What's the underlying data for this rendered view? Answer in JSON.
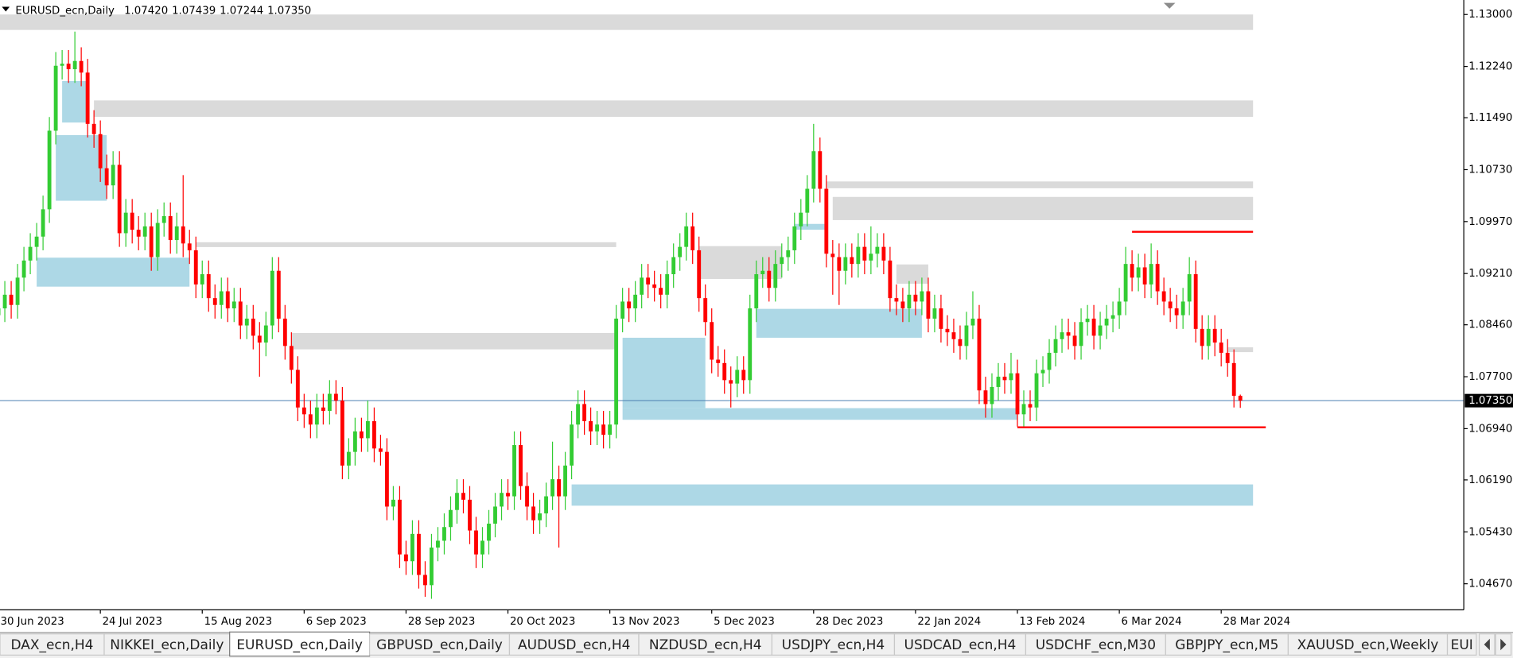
{
  "chart_data": {
    "type": "candlestick",
    "symbol": "EURUSD_ecn,Daily",
    "header_values": [
      "1.07420",
      "1.07439",
      "1.07244",
      "1.07350"
    ],
    "up_color": "#33cc33",
    "down_color": "#ff0000",
    "ylim": [
      1.04289,
      1.13184
    ],
    "yticks": [
      {
        "value": 1.13,
        "label": "1.13000"
      },
      {
        "value": 1.1224,
        "label": "1.12240"
      },
      {
        "value": 1.1149,
        "label": "1.11490"
      },
      {
        "value": 1.1073,
        "label": "1.10730"
      },
      {
        "value": 1.0997,
        "label": "1.09970"
      },
      {
        "value": 1.0921,
        "label": "1.09210"
      },
      {
        "value": 1.0846,
        "label": "1.08460"
      },
      {
        "value": 1.077,
        "label": "1.07700"
      },
      {
        "value": 1.0694,
        "label": "1.06940"
      },
      {
        "value": 1.0619,
        "label": "1.06190"
      },
      {
        "value": 1.0543,
        "label": "1.05430"
      },
      {
        "value": 1.0467,
        "label": "1.04670"
      }
    ],
    "last_price": {
      "value": 1.0735,
      "label": "1.07350"
    },
    "last_price_color": "#4a7fb0",
    "categories": [
      "30 Jun 2023",
      null,
      null,
      null,
      null,
      null,
      null,
      null,
      null,
      null,
      null,
      null,
      null,
      null,
      null,
      null,
      "24 Jul 2023",
      null,
      null,
      null,
      null,
      null,
      null,
      null,
      null,
      null,
      null,
      null,
      null,
      null,
      null,
      null,
      "15 Aug 2023",
      null,
      null,
      null,
      null,
      null,
      null,
      null,
      null,
      null,
      null,
      null,
      null,
      null,
      null,
      null,
      "6 Sep 2023",
      null,
      null,
      null,
      null,
      null,
      null,
      null,
      null,
      null,
      null,
      null,
      null,
      null,
      null,
      null,
      "28 Sep 2023",
      null,
      null,
      null,
      null,
      null,
      null,
      null,
      null,
      null,
      null,
      null,
      null,
      null,
      null,
      null,
      "20 Oct 2023",
      null,
      null,
      null,
      null,
      null,
      null,
      null,
      null,
      null,
      null,
      null,
      null,
      null,
      null,
      null,
      "13 Nov 2023",
      null,
      null,
      null,
      null,
      null,
      null,
      null,
      null,
      null,
      null,
      null,
      null,
      null,
      null,
      null,
      "5 Dec 2023",
      null,
      null,
      null,
      null,
      null,
      null,
      null,
      null,
      null,
      null,
      null,
      null,
      null,
      null,
      null,
      "28 Dec 2023",
      null,
      null,
      null,
      null,
      null,
      null,
      null,
      null,
      null,
      null,
      null,
      null,
      null,
      null,
      null,
      "22 Jan 2024",
      null,
      null,
      null,
      null,
      null,
      null,
      null,
      null,
      null,
      null,
      null,
      null,
      null,
      null,
      null,
      "13 Feb 2024",
      null,
      null,
      null,
      null,
      null,
      null,
      null,
      null,
      null,
      null,
      null,
      null,
      null,
      null,
      null,
      "6 Mar 2024",
      null,
      null,
      null,
      null,
      null,
      null,
      null,
      null,
      null,
      null,
      null,
      null,
      null,
      null,
      null,
      "28 Mar 2024",
      null,
      null,
      null
    ],
    "open": [
      1.086,
      1.087,
      1.089,
      1.0875,
      1.0915,
      1.094,
      1.096,
      1.0975,
      1.1015,
      1.113,
      1.1225,
      1.1228,
      1.122,
      1.1232,
      1.1215,
      1.114,
      1.1125,
      1.1075,
      1.105,
      1.108,
      1.098,
      1.101,
      1.0985,
      1.0975,
      1.099,
      1.0945,
      1.0995,
      1.1005,
      1.097,
      1.099,
      1.0965,
      1.0955,
      1.0905,
      1.092,
      1.0885,
      1.0875,
      1.0895,
      1.087,
      1.088,
      1.0845,
      1.0855,
      1.083,
      1.082,
      1.0845,
      1.0925,
      1.0855,
      1.0815,
      1.078,
      1.0725,
      1.0715,
      1.07,
      1.0725,
      1.072,
      1.0745,
      1.0735,
      1.064,
      1.066,
      1.069,
      1.068,
      1.0705,
      1.0665,
      1.066,
      1.058,
      1.059,
      1.051,
      1.05,
      1.054,
      1.048,
      1.0465,
      1.052,
      1.053,
      1.055,
      1.0575,
      1.06,
      1.059,
      1.0545,
      1.051,
      1.053,
      1.0555,
      1.058,
      1.06,
      1.0595,
      1.067,
      1.061,
      1.058,
      1.056,
      1.057,
      1.0595,
      1.062,
      1.0595,
      1.064,
      1.07,
      1.073,
      1.0705,
      1.069,
      1.07,
      1.0685,
      1.07,
      1.0855,
      1.088,
      1.087,
      1.089,
      1.0915,
      1.0905,
      1.09,
      1.089,
      1.092,
      1.0945,
      1.096,
      1.099,
      1.0955,
      1.0885,
      1.085,
      1.0795,
      1.079,
      1.0765,
      1.076,
      1.078,
      1.0765,
      1.087,
      1.092,
      1.0925,
      1.09,
      1.0935,
      1.0945,
      1.0955,
      1.099,
      1.101,
      1.1045,
      1.11,
      1.1045,
      1.095,
      1.0945,
      1.0925,
      1.0945,
      1.0935,
      1.096,
      1.094,
      1.095,
      1.096,
      1.094,
      1.0885,
      1.088,
      1.087,
      1.089,
      1.088,
      1.0895,
      1.0855,
      1.087,
      1.084,
      1.0835,
      1.0825,
      1.0815,
      1.0845,
      1.0855,
      1.075,
      1.073,
      1.0755,
      1.077,
      1.0765,
      1.0775,
      1.0715,
      1.073,
      1.0725,
      1.0775,
      1.078,
      1.0805,
      1.0825,
      1.0835,
      1.083,
      1.0815,
      1.085,
      1.0855,
      1.083,
      1.0845,
      1.0855,
      1.086,
      1.088,
      1.0935,
      1.0915,
      1.093,
      1.0905,
      1.0935,
      1.0895,
      1.088,
      1.087,
      1.086,
      1.088,
      1.092,
      1.084,
      1.0815,
      1.084,
      1.082,
      1.0805,
      1.079,
      1.0742
    ],
    "high": [
      1.089,
      1.091,
      1.091,
      1.0935,
      1.096,
      1.098,
      1.0995,
      1.1035,
      1.115,
      1.1245,
      1.1248,
      1.1248,
      1.1275,
      1.1252,
      1.1235,
      1.116,
      1.1145,
      1.1095,
      1.11,
      1.11,
      1.103,
      1.103,
      1.1005,
      1.101,
      1.101,
      1.1015,
      1.1025,
      1.1025,
      1.101,
      1.1065,
      1.0985,
      1.0975,
      1.094,
      1.094,
      1.0905,
      1.0915,
      1.0915,
      1.09,
      1.09,
      1.0875,
      1.0875,
      1.085,
      1.0865,
      1.0945,
      1.0945,
      1.0875,
      1.0835,
      1.08,
      1.0745,
      1.0735,
      1.0745,
      1.0745,
      1.0765,
      1.0765,
      1.0755,
      1.068,
      1.071,
      1.071,
      1.0735,
      1.0725,
      1.0685,
      1.068,
      1.061,
      1.061,
      1.053,
      1.056,
      1.056,
      1.05,
      1.054,
      1.055,
      1.057,
      1.0595,
      1.062,
      1.062,
      1.061,
      1.0565,
      1.055,
      1.0575,
      1.06,
      1.062,
      1.062,
      1.069,
      1.069,
      1.063,
      1.06,
      1.059,
      1.0615,
      1.0675,
      1.064,
      1.066,
      1.072,
      1.075,
      1.075,
      1.0725,
      1.072,
      1.072,
      1.072,
      1.0875,
      1.09,
      1.09,
      1.091,
      1.0935,
      1.0935,
      1.0925,
      1.092,
      1.094,
      1.0965,
      1.098,
      1.101,
      1.101,
      1.0975,
      1.0905,
      1.087,
      1.0815,
      1.081,
      1.0785,
      1.08,
      1.08,
      1.089,
      1.094,
      1.0945,
      1.0945,
      1.0955,
      1.0965,
      1.0975,
      1.101,
      1.103,
      1.1065,
      1.114,
      1.112,
      1.1065,
      1.097,
      1.0965,
      1.0965,
      1.0965,
      1.098,
      1.098,
      1.099,
      1.098,
      1.098,
      1.096,
      1.0905,
      1.09,
      1.091,
      1.091,
      1.0915,
      1.0915,
      1.089,
      1.089,
      1.086,
      1.0855,
      1.0845,
      1.0865,
      1.0895,
      1.0875,
      1.077,
      1.0775,
      1.079,
      1.079,
      1.0805,
      1.0795,
      1.075,
      1.075,
      1.0795,
      1.08,
      1.0825,
      1.0845,
      1.0855,
      1.0855,
      1.085,
      1.087,
      1.0875,
      1.0875,
      1.0865,
      1.0875,
      1.088,
      1.09,
      1.096,
      1.0955,
      1.095,
      1.095,
      1.0965,
      1.0955,
      1.0915,
      1.09,
      1.089,
      1.09,
      1.0945,
      1.094,
      1.086,
      1.086,
      1.086,
      1.084,
      1.0825,
      1.081,
      1.07439
    ],
    "low": [
      1.084,
      1.085,
      1.0855,
      1.0855,
      1.0895,
      1.092,
      1.094,
      1.0955,
      1.0995,
      1.111,
      1.1205,
      1.12,
      1.12,
      1.1195,
      1.112,
      1.1105,
      1.1055,
      1.103,
      1.103,
      1.096,
      1.096,
      1.0965,
      1.0955,
      1.0955,
      1.0925,
      1.0925,
      1.0975,
      1.095,
      1.095,
      1.0945,
      1.0935,
      1.0885,
      1.0885,
      1.0865,
      1.0855,
      1.0855,
      1.085,
      1.085,
      1.0825,
      1.0825,
      1.081,
      1.077,
      1.08,
      1.0825,
      1.0835,
      1.0795,
      1.076,
      1.0705,
      1.0695,
      1.068,
      1.068,
      1.07,
      1.07,
      1.0715,
      1.062,
      1.062,
      1.064,
      1.066,
      1.066,
      1.0645,
      1.064,
      1.056,
      1.056,
      1.049,
      1.048,
      1.048,
      1.046,
      1.0448,
      1.0445,
      1.05,
      1.051,
      1.053,
      1.0555,
      1.057,
      1.0525,
      1.049,
      1.049,
      1.051,
      1.0535,
      1.056,
      1.0575,
      1.0575,
      1.059,
      1.056,
      1.054,
      1.054,
      1.055,
      1.0575,
      1.052,
      1.0575,
      1.062,
      1.068,
      1.0685,
      1.067,
      1.067,
      1.0665,
      1.0665,
      1.068,
      1.0835,
      1.085,
      1.085,
      1.087,
      1.0885,
      1.088,
      1.087,
      1.087,
      1.09,
      1.0925,
      1.094,
      1.0935,
      1.0865,
      1.083,
      1.0775,
      1.077,
      1.0745,
      1.0725,
      1.074,
      1.0745,
      1.0745,
      1.085,
      1.09,
      1.088,
      1.088,
      1.0915,
      1.0925,
      1.0935,
      1.097,
      1.099,
      1.1025,
      1.1025,
      1.093,
      1.089,
      1.0875,
      1.0905,
      1.0915,
      1.0915,
      1.092,
      1.092,
      1.093,
      1.092,
      1.0865,
      1.086,
      1.085,
      1.085,
      1.086,
      1.086,
      1.0835,
      1.0835,
      1.082,
      1.0815,
      1.0805,
      1.0795,
      1.0795,
      1.0825,
      1.073,
      1.071,
      1.071,
      1.0735,
      1.0745,
      1.0745,
      1.0697,
      1.0695,
      1.0705,
      1.0705,
      1.0755,
      1.076,
      1.0785,
      1.0805,
      1.081,
      1.0795,
      1.0795,
      1.083,
      1.081,
      1.081,
      1.0825,
      1.0835,
      1.084,
      1.086,
      1.0895,
      1.0895,
      1.0885,
      1.0885,
      1.0875,
      1.086,
      1.085,
      1.084,
      1.084,
      1.086,
      1.082,
      1.0795,
      1.0795,
      1.08,
      1.0785,
      1.077,
      1.0725,
      1.07244
    ],
    "close": [
      1.087,
      1.089,
      1.0875,
      1.0915,
      1.094,
      1.096,
      1.0975,
      1.1015,
      1.113,
      1.1225,
      1.1228,
      1.122,
      1.1232,
      1.1215,
      1.114,
      1.1125,
      1.1075,
      1.105,
      1.108,
      1.098,
      1.101,
      1.0985,
      1.0975,
      1.099,
      1.0945,
      1.0995,
      1.1005,
      1.097,
      1.099,
      1.0965,
      1.0955,
      1.0905,
      1.092,
      1.0885,
      1.0875,
      1.0895,
      1.087,
      1.088,
      1.0845,
      1.0855,
      1.083,
      1.082,
      1.0845,
      1.0925,
      1.0855,
      1.0815,
      1.078,
      1.0725,
      1.0715,
      1.07,
      1.0725,
      1.072,
      1.0745,
      1.0735,
      1.064,
      1.066,
      1.069,
      1.068,
      1.0705,
      1.0665,
      1.066,
      1.058,
      1.059,
      1.051,
      1.05,
      1.054,
      1.048,
      1.0465,
      1.052,
      1.053,
      1.055,
      1.0575,
      1.06,
      1.059,
      1.0545,
      1.051,
      1.053,
      1.0555,
      1.058,
      1.06,
      1.0595,
      1.067,
      1.061,
      1.058,
      1.056,
      1.057,
      1.0595,
      1.062,
      1.0595,
      1.064,
      1.07,
      1.073,
      1.0705,
      1.069,
      1.07,
      1.0685,
      1.07,
      1.0855,
      1.088,
      1.087,
      1.089,
      1.0915,
      1.0905,
      1.09,
      1.089,
      1.092,
      1.0945,
      1.096,
      1.099,
      1.0955,
      1.0885,
      1.085,
      1.0795,
      1.079,
      1.0765,
      1.076,
      1.078,
      1.0765,
      1.087,
      1.092,
      1.0925,
      1.09,
      1.0935,
      1.0945,
      1.0955,
      1.099,
      1.101,
      1.1045,
      1.11,
      1.1045,
      1.095,
      1.0945,
      1.0925,
      1.0945,
      1.0935,
      1.096,
      1.094,
      1.095,
      1.096,
      1.094,
      1.0885,
      1.088,
      1.087,
      1.089,
      1.088,
      1.0895,
      1.0855,
      1.087,
      1.084,
      1.0835,
      1.0825,
      1.0815,
      1.0845,
      1.0855,
      1.075,
      1.073,
      1.0755,
      1.077,
      1.0765,
      1.0775,
      1.0715,
      1.073,
      1.0725,
      1.0775,
      1.078,
      1.0805,
      1.0825,
      1.0835,
      1.083,
      1.0815,
      1.085,
      1.0855,
      1.083,
      1.0845,
      1.0855,
      1.086,
      1.088,
      1.0935,
      1.0915,
      1.093,
      1.0905,
      1.0935,
      1.0895,
      1.088,
      1.087,
      1.086,
      1.088,
      1.092,
      1.084,
      1.0815,
      1.084,
      1.082,
      1.0805,
      1.079,
      1.0742,
      1.0735
    ],
    "zones": [
      {
        "low": 1.12774,
        "high": 1.13,
        "start": 0,
        "end": 197,
        "color": "#dadada"
      },
      {
        "low": 1.11503,
        "high": 1.11743,
        "start": 15,
        "end": 197,
        "color": "#dadada"
      },
      {
        "low": 1.10458,
        "high": 1.10557,
        "start": 130,
        "end": 197,
        "color": "#dadada"
      },
      {
        "low": 1.09992,
        "high": 1.10331,
        "start": 131,
        "end": 197,
        "color": "#dadada"
      },
      {
        "low": 1.09597,
        "high": 1.09668,
        "start": 31,
        "end": 97,
        "color": "#dadada"
      },
      {
        "low": 1.09131,
        "high": 1.09611,
        "start": 110,
        "end": 123,
        "color": "#dadada"
      },
      {
        "low": 1.081,
        "high": 1.0834,
        "start": 46,
        "end": 97,
        "color": "#dadada"
      },
      {
        "low": 1.0906,
        "high": 1.09343,
        "start": 141,
        "end": 146,
        "color": "#dadada"
      },
      {
        "low": 1.0806,
        "high": 1.0813,
        "start": 193,
        "end": 197,
        "color": "#dadada"
      },
      {
        "low": 1.11419,
        "high": 1.12026,
        "start": 10,
        "end": 14,
        "color": "#add8e6"
      },
      {
        "low": 1.10275,
        "high": 1.11235,
        "start": 9,
        "end": 17,
        "color": "#add8e6"
      },
      {
        "low": 1.09018,
        "high": 1.09442,
        "start": 6,
        "end": 30,
        "color": "#add8e6"
      },
      {
        "low": 1.0827,
        "high": 1.08693,
        "start": 119,
        "end": 145,
        "color": "#add8e6"
      },
      {
        "low": 1.0724,
        "high": 1.0827,
        "start": 98,
        "end": 111,
        "color": "#add8e6"
      },
      {
        "low": 1.0707,
        "high": 1.0724,
        "start": 98,
        "end": 160,
        "color": "#add8e6"
      },
      {
        "low": 1.05813,
        "high": 1.06124,
        "start": 90,
        "end": 197,
        "color": "#add8e6"
      },
      {
        "low": 1.09851,
        "high": 1.09936,
        "start": 125,
        "end": 130,
        "color": "#add8e6"
      }
    ],
    "levels": [
      {
        "value": 1.0982,
        "start": 178,
        "end": 197,
        "color": "#ff0000"
      },
      {
        "value": 1.0696,
        "start": 160,
        "end": 199,
        "color": "#ff0000"
      }
    ],
    "tabs": [
      "DAX_ecn,H4",
      "NIKKEI_ecn,Daily",
      "EURUSD_ecn,Daily",
      "GBPUSD_ecn,Daily",
      "AUDUSD_ecn,H4",
      "NZDUSD_ecn,H4",
      "USDJPY_ecn,H4",
      "USDCAD_ecn,H4",
      "USDCHF_ecn,M30",
      "GBPJPY_ecn,M5",
      "XAUUSD_ecn,Weekly",
      "EUI"
    ],
    "active_tab": 2
  }
}
